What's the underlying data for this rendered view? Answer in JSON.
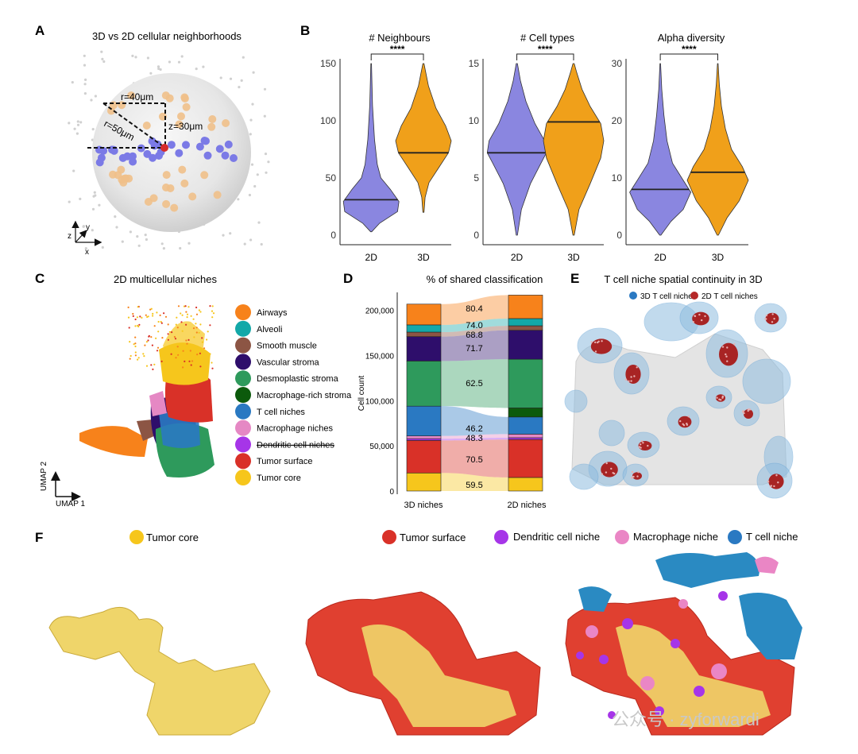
{
  "panels": {
    "A": {
      "label": "A",
      "title": "3D vs 2D cellular neighborhoods",
      "r40": "r=40μm",
      "r50": "r=50μm",
      "z30": "z=30μm",
      "axes": {
        "z": "z",
        "y": "y",
        "x": "x"
      }
    },
    "B": {
      "label": "B"
    },
    "C": {
      "label": "C",
      "title": "2D multicellular niches",
      "umap1": "UMAP 1",
      "umap2": "UMAP 2"
    },
    "D": {
      "label": "D",
      "title": "% of shared classification"
    },
    "E": {
      "label": "E",
      "title": "T cell niche spatial continuity in 3D",
      "legend": [
        {
          "name": "3D T cell niches",
          "color": "#2a79c2"
        },
        {
          "name": "2D T cell niches",
          "color": "#b52828"
        }
      ]
    },
    "F": {
      "label": "F",
      "legend_left": {
        "name": "Tumor core",
        "color": "#f6c61c"
      },
      "legend_mid": {
        "name": "Tumor surface",
        "color": "#d93128"
      },
      "legend_right": [
        {
          "name": "Dendritic cell niche",
          "color": "#a635e8"
        },
        {
          "name": "Macrophage niche",
          "color": "#ea86c5"
        },
        {
          "name": "T cell niche",
          "color": "#2a79c2"
        }
      ]
    }
  },
  "niches": [
    {
      "name": "Airways",
      "color": "#f7821b"
    },
    {
      "name": "Alveoli",
      "color": "#13a8a8"
    },
    {
      "name": "Smooth muscle",
      "color": "#8c5544"
    },
    {
      "name": "Vascular stroma",
      "color": "#2e0e6b"
    },
    {
      "name": "Desmoplastic stroma",
      "color": "#2e9a5c"
    },
    {
      "name": "Macrophage-rich stroma",
      "color": "#0c5a0c"
    },
    {
      "name": "T cell niches",
      "color": "#2a79c2"
    },
    {
      "name": "Macrophage niches",
      "color": "#e588c4"
    },
    {
      "name": "Dendritic cell niches",
      "color": "#a635e8"
    },
    {
      "name": "Tumor surface",
      "color": "#d93128"
    },
    {
      "name": "Tumor core",
      "color": "#f6c61c"
    }
  ],
  "colors": {
    "2D": "#8a86e0",
    "3D": "#f0a01a"
  },
  "watermark": "公众号 · zyforwardi",
  "chart_data": [
    {
      "type": "violin",
      "title": "# Neighbours",
      "categories": [
        "2D",
        "3D"
      ],
      "ylim": [
        0,
        150
      ],
      "yticks": [
        0,
        50,
        100,
        150
      ],
      "significance": "****",
      "series": [
        {
          "name": "2D",
          "median": 31,
          "min": 3,
          "max": 150
        },
        {
          "name": "3D",
          "median": 72,
          "min": 20,
          "max": 150
        }
      ]
    },
    {
      "type": "violin",
      "title": "# Cell types",
      "categories": [
        "2D",
        "3D"
      ],
      "ylim": [
        0,
        15
      ],
      "yticks": [
        0,
        5,
        10,
        15
      ],
      "significance": "****",
      "series": [
        {
          "name": "2D",
          "median": 7.2,
          "min": 0,
          "max": 15
        },
        {
          "name": "3D",
          "median": 9.9,
          "min": 0,
          "max": 15
        }
      ]
    },
    {
      "type": "violin",
      "title": "Alpha diversity",
      "categories": [
        "2D",
        "3D"
      ],
      "ylim": [
        0,
        30
      ],
      "yticks": [
        0,
        10,
        20,
        30
      ],
      "significance": "****",
      "series": [
        {
          "name": "2D",
          "median": 8,
          "min": 0,
          "max": 30
        },
        {
          "name": "3D",
          "median": 11,
          "min": 0,
          "max": 30
        }
      ]
    },
    {
      "type": "alluvial",
      "ylabel": "Cell count",
      "ylim": [
        0,
        220000
      ],
      "yticks": [
        "0",
        "50,000",
        "100,000",
        "150,000",
        "200,000"
      ],
      "ytick_values": [
        0,
        50000,
        100000,
        150000,
        200000
      ],
      "categories": [
        "3D niches",
        "2D niches"
      ],
      "stacks_3d": [
        {
          "niche": "Tumor core",
          "value": 20000
        },
        {
          "niche": "Tumor surface",
          "value": 36000
        },
        {
          "niche": "Dendritic cell niches",
          "value": 2000
        },
        {
          "niche": "Macrophage niches",
          "value": 3000
        },
        {
          "niche": "T cell niches",
          "value": 33000
        },
        {
          "niche": "Desmoplastic stroma",
          "value": 50000
        },
        {
          "niche": "Vascular stroma",
          "value": 27000
        },
        {
          "niche": "Smooth muscle",
          "value": 5000
        },
        {
          "niche": "Alveoli",
          "value": 8000
        },
        {
          "niche": "Airways",
          "value": 23000
        }
      ],
      "stacks_2d": [
        {
          "niche": "Tumor core",
          "value": 15000
        },
        {
          "niche": "Tumor surface",
          "value": 42000
        },
        {
          "niche": "Dendritic cell niches",
          "value": 2000
        },
        {
          "niche": "Macrophage niches",
          "value": 4000
        },
        {
          "niche": "T cell niches",
          "value": 19000
        },
        {
          "niche": "Macrophage-rich stroma",
          "value": 10000
        },
        {
          "niche": "Desmoplastic stroma",
          "value": 54000
        },
        {
          "niche": "Vascular stroma",
          "value": 32000
        },
        {
          "niche": "Smooth muscle",
          "value": 5000
        },
        {
          "niche": "Alveoli",
          "value": 8000
        },
        {
          "niche": "Airways",
          "value": 26000
        }
      ],
      "shared_percent": [
        {
          "niche": "Airways",
          "value": "80.4"
        },
        {
          "niche": "Alveoli",
          "value": "74.0"
        },
        {
          "niche": "Smooth muscle",
          "value": "68.8"
        },
        {
          "niche": "Vascular stroma",
          "value": "71.7"
        },
        {
          "niche": "Desmoplastic stroma",
          "value": "62.5"
        },
        {
          "niche": "T cell niches",
          "value": "46.2"
        },
        {
          "niche": "Macrophage niches",
          "value": "48.3"
        },
        {
          "niche": "Tumor surface",
          "value": "70.5"
        },
        {
          "niche": "Tumor core",
          "value": "59.5"
        }
      ]
    }
  ]
}
